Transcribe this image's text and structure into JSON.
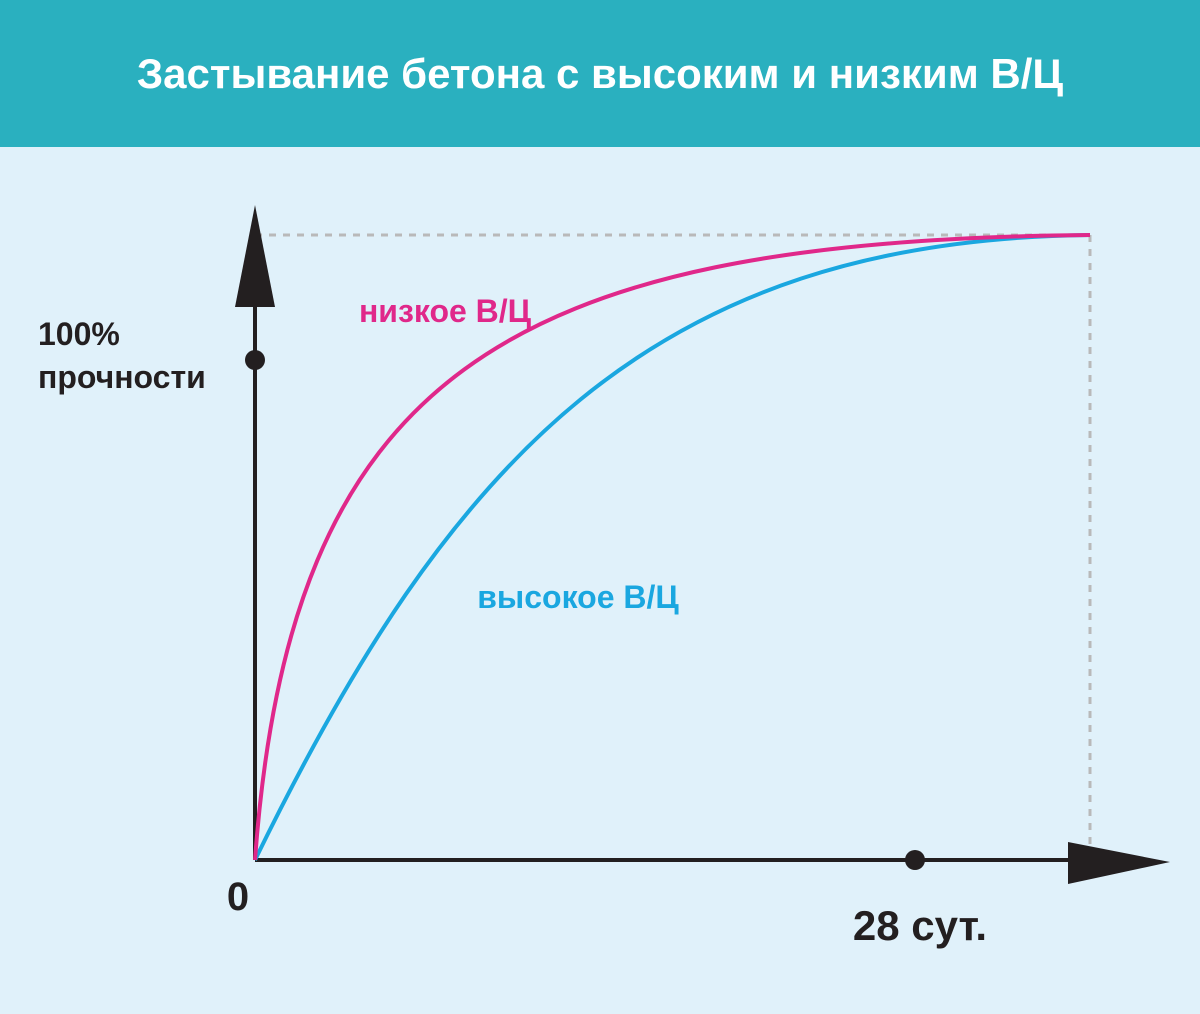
{
  "title": "Застывание бетона с высоким и низким В/Ц",
  "y_axis": {
    "label_lines": [
      "100%",
      "прочности"
    ]
  },
  "origin": "0",
  "x_axis": {
    "label": "28 сут."
  },
  "curves": [
    {
      "label": "низкое В/Ц"
    },
    {
      "label": "высокое В/Ц"
    }
  ]
}
